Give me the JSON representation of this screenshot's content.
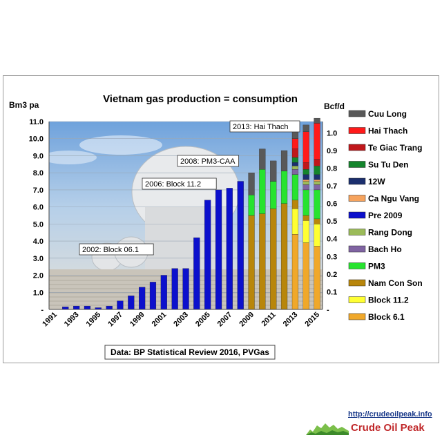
{
  "chart_data": {
    "type": "bar",
    "title": "Vietnam gas production = consumption",
    "ylabel": "Bm3 pa",
    "ylabel_right": "Bcf/d",
    "ylim": [
      0,
      11
    ],
    "yticks": [
      "-",
      "1.0",
      "2.0",
      "3.0",
      "4.0",
      "5.0",
      "6.0",
      "7.0",
      "8.0",
      "9.0",
      "10.0",
      "11.0"
    ],
    "yticks_right": [
      "-",
      "0.1",
      "0.2",
      "0.3",
      "0.4",
      "0.5",
      "0.6",
      "0.7",
      "0.8",
      "0.9",
      "1.0"
    ],
    "ylim_right": [
      0,
      1.064
    ],
    "x_tick_labels": [
      "1991",
      "1993",
      "1995",
      "1997",
      "1999",
      "2001",
      "2003",
      "2005",
      "2007",
      "2009",
      "2011",
      "2013",
      "2015"
    ],
    "categories": [
      "1991",
      "1992",
      "1993",
      "1994",
      "1995",
      "1996",
      "1997",
      "1998",
      "1999",
      "2000",
      "2001",
      "2002",
      "2003",
      "2004",
      "2005",
      "2006",
      "2007",
      "2008",
      "2009",
      "2010",
      "2011",
      "2012",
      "2013",
      "2014",
      "2015"
    ],
    "legend_position": "right",
    "series": [
      {
        "name": "Cuu Long",
        "color": "#595959",
        "values": [
          0,
          0,
          0,
          0,
          0,
          0,
          0,
          0,
          0,
          0,
          0,
          0,
          0,
          0,
          0,
          0,
          0,
          0,
          1.3,
          1.2,
          1.2,
          1.2,
          0.4,
          0.4,
          0.3
        ]
      },
      {
        "name": "Hai Thach",
        "color": "#ff1a1a",
        "values": [
          0,
          0,
          0,
          0,
          0,
          0,
          0,
          0,
          0,
          0,
          0,
          0,
          0,
          0,
          0,
          0,
          0,
          0,
          0,
          0,
          0,
          0,
          0.6,
          1.8,
          2.1
        ]
      },
      {
        "name": "Te Giac Trang",
        "color": "#c0171b",
        "values": [
          0,
          0,
          0,
          0,
          0,
          0,
          0,
          0,
          0,
          0,
          0,
          0,
          0,
          0,
          0,
          0,
          0,
          0,
          0,
          0,
          0,
          0,
          0.5,
          0.4,
          0.4
        ]
      },
      {
        "name": "Su Tu Den",
        "color": "#14852c",
        "values": [
          0,
          0,
          0,
          0,
          0,
          0,
          0,
          0,
          0,
          0,
          0,
          0,
          0,
          0,
          0,
          0,
          0,
          0,
          0,
          0,
          0,
          0,
          0.3,
          0.3,
          0.5
        ]
      },
      {
        "name": "12W",
        "color": "#1b2f6e",
        "values": [
          0,
          0,
          0,
          0,
          0,
          0,
          0,
          0,
          0,
          0,
          0,
          0,
          0,
          0,
          0,
          0,
          0,
          0,
          0,
          0,
          0,
          0,
          0.2,
          0.3,
          0.3
        ]
      },
      {
        "name": "Ca Ngu Vang",
        "color": "#f6a35d",
        "values": [
          0,
          0,
          0,
          0,
          0,
          0,
          0,
          0,
          0,
          0,
          0,
          0,
          0,
          0,
          0,
          0,
          0,
          0,
          0,
          0,
          0,
          0,
          0,
          0.1,
          0.1
        ]
      },
      {
        "name": "Pre 2009",
        "color": "#0c10cc",
        "values": [
          0,
          0.15,
          0.2,
          0.2,
          0.1,
          0.2,
          0.5,
          0.8,
          1.3,
          1.6,
          2.0,
          2.4,
          2.4,
          4.2,
          6.4,
          7.0,
          7.1,
          7.5,
          0,
          0,
          0,
          0,
          0,
          0,
          0
        ]
      },
      {
        "name": "Rang Dong",
        "color": "#9bbb59",
        "values": [
          0,
          0,
          0,
          0,
          0,
          0,
          0,
          0,
          0,
          0,
          0,
          0,
          0,
          0,
          0,
          0,
          0,
          0,
          0,
          0,
          0,
          0,
          0.2,
          0.2,
          0.2
        ]
      },
      {
        "name": "Bach Ho",
        "color": "#8064a2",
        "values": [
          0,
          0,
          0,
          0,
          0,
          0,
          0,
          0,
          0,
          0,
          0,
          0,
          0,
          0,
          0,
          0,
          0,
          0,
          0,
          0,
          0,
          0,
          0.3,
          0.3,
          0.3
        ]
      },
      {
        "name": "PM3",
        "color": "#27e32f",
        "values": [
          0,
          0,
          0,
          0,
          0,
          0,
          0,
          0,
          0,
          0,
          0,
          0,
          0,
          0,
          0,
          0,
          0,
          0,
          1.2,
          2.6,
          1.6,
          1.9,
          1.5,
          1.5,
          1.7
        ]
      },
      {
        "name": "Nam Con Son",
        "color": "#b8860b",
        "values": [
          0,
          0,
          0,
          0,
          0,
          0,
          0,
          0,
          0,
          0,
          0,
          0,
          0,
          0,
          0,
          0,
          0,
          0,
          5.5,
          5.6,
          5.9,
          6.2,
          0.5,
          0.3,
          0.3
        ]
      },
      {
        "name": "Block 11.2",
        "color": "#ffff33",
        "values": [
          0,
          0,
          0,
          0,
          0,
          0,
          0,
          0,
          0,
          0,
          0,
          0,
          0,
          0,
          0,
          0,
          0,
          0,
          0,
          0,
          0,
          0,
          1.5,
          1.3,
          1.3
        ]
      },
      {
        "name": "Block 6.1",
        "color": "#f0a82a",
        "values": [
          0,
          0,
          0,
          0,
          0,
          0,
          0,
          0,
          0,
          0,
          0,
          0,
          0,
          0,
          0,
          0,
          0,
          0,
          0,
          0,
          0,
          0,
          4.4,
          3.9,
          3.7
        ]
      }
    ],
    "annotations": [
      {
        "label": "2002: Block 06.1",
        "year": "2002"
      },
      {
        "label": "2006: Block 11.2",
        "year": "2006"
      },
      {
        "label": "2008: PM3-CAA",
        "year": "2008"
      },
      {
        "label": "2013: Hai Thach",
        "year": "2013"
      }
    ],
    "source": "Data: BP Statistical Review 2016, PVGas",
    "colors": {
      "bg_sky": "#a9c7e6",
      "bg_plant": "#d8d2c8",
      "gridline": "#9aa8b6"
    }
  },
  "branding": {
    "url": "http://crudeoilpeak.info",
    "logo_text": "Crude Oil Peak"
  }
}
